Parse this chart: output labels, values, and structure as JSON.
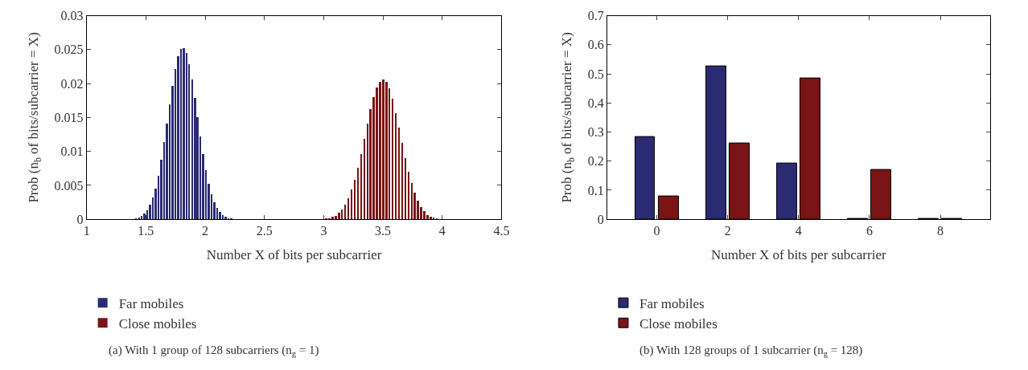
{
  "chart_data": [
    {
      "type": "bar",
      "xlabel": "Number X of bits per subcarrier",
      "ylabel": "Prob (n$_{b}$ of bits/subcarrier = X)",
      "xlim": [
        1,
        4.5
      ],
      "xticks": [
        1,
        1.5,
        2,
        2.5,
        3,
        3.5,
        4,
        4.5
      ],
      "ylim": [
        0,
        0.03
      ],
      "yticks": [
        0,
        0.005,
        0.01,
        0.015,
        0.02,
        0.025,
        0.03
      ],
      "legend": "bottom",
      "annotations": [
        "(a) With 1 group of 128 subcarriers (n$_{g}$ = 1)"
      ],
      "series": [
        {
          "name": "Far mobiles",
          "color": "#2b2b74",
          "x": [
            1.417,
            1.441,
            1.464,
            1.488,
            1.511,
            1.535,
            1.559,
            1.582,
            1.606,
            1.629,
            1.653,
            1.677,
            1.7,
            1.724,
            1.747,
            1.771,
            1.795,
            1.818,
            1.842,
            1.865,
            1.889,
            1.913,
            1.936,
            1.96,
            1.983,
            2.007,
            2.031,
            2.054,
            2.078,
            2.101,
            2.125,
            2.149,
            2.172,
            2.196,
            2.219
          ],
          "values": [
            0.0001,
            0.0003,
            0.0005,
            0.0009,
            0.0014,
            0.0022,
            0.0033,
            0.0046,
            0.0065,
            0.0088,
            0.0114,
            0.0141,
            0.017,
            0.0197,
            0.0222,
            0.0241,
            0.0252,
            0.0253,
            0.0245,
            0.0229,
            0.0207,
            0.0179,
            0.0151,
            0.0122,
            0.0096,
            0.0073,
            0.0053,
            0.0037,
            0.0025,
            0.0017,
            0.0011,
            0.0007,
            0.0004,
            0.0002,
            0.0001
          ]
        },
        {
          "name": "Close mobiles",
          "color": "#7a1416",
          "x": [
            3.021,
            3.048,
            3.074,
            3.101,
            3.128,
            3.154,
            3.181,
            3.208,
            3.234,
            3.261,
            3.288,
            3.314,
            3.341,
            3.368,
            3.394,
            3.421,
            3.448,
            3.474,
            3.501,
            3.528,
            3.554,
            3.581,
            3.608,
            3.634,
            3.661,
            3.688,
            3.714,
            3.741,
            3.768,
            3.794,
            3.821,
            3.848,
            3.874,
            3.901,
            3.928,
            3.954
          ],
          "values": [
            0.0001,
            0.0002,
            0.0004,
            0.0006,
            0.001,
            0.0015,
            0.0022,
            0.0031,
            0.0044,
            0.0059,
            0.0077,
            0.0097,
            0.0119,
            0.0141,
            0.0163,
            0.018,
            0.0195,
            0.0203,
            0.0207,
            0.0203,
            0.0193,
            0.0178,
            0.0157,
            0.0136,
            0.0113,
            0.0091,
            0.0071,
            0.0054,
            0.004,
            0.0028,
            0.0019,
            0.0012,
            0.0007,
            0.0004,
            0.0003,
            0.0001
          ]
        }
      ]
    },
    {
      "type": "bar",
      "xlabel": "Number X of bits per subcarrier",
      "ylabel": "Prob (n$_{b}$ of bits/subcarrier = X)",
      "categories": [
        "0",
        "2",
        "4",
        "6",
        "8"
      ],
      "ylim": [
        0,
        0.7
      ],
      "yticks": [
        0,
        0.1,
        0.2,
        0.3,
        0.4,
        0.5,
        0.6,
        0.7
      ],
      "legend": "bottom",
      "annotations": [
        "(b) With 128 groups of 1 subcarrier (n$_{g}$ = 128)"
      ],
      "series": [
        {
          "name": "Far mobiles",
          "color": "#2b2b74",
          "values": [
            0.282,
            0.525,
            0.192,
            0.001,
            0.001
          ]
        },
        {
          "name": "Close mobiles",
          "color": "#7a1416",
          "values": [
            0.08,
            0.262,
            0.485,
            0.171,
            0.001
          ]
        }
      ]
    }
  ]
}
